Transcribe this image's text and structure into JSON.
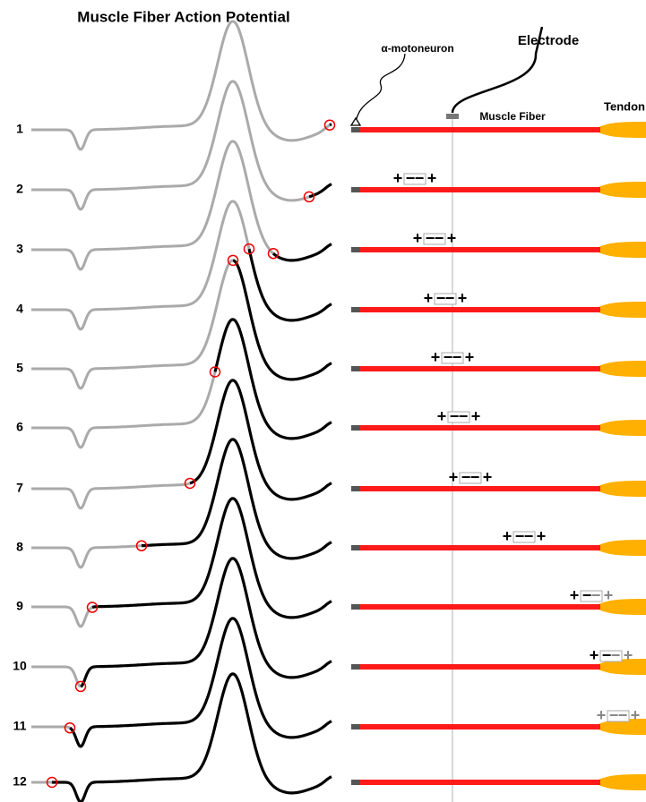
{
  "title": "Muscle Fiber Action Potential",
  "labels": {
    "motoneuron": "α-motoneuron",
    "electrode": "Electrode",
    "fiber": "Muscle Fiber",
    "tendon": "Tendon"
  },
  "rows": [
    "1",
    "2",
    "3",
    "4",
    "5",
    "6",
    "7",
    "8",
    "9",
    "10",
    "11",
    "12"
  ],
  "charge_symbols": {
    "plus": "+",
    "minus": "−"
  }
}
